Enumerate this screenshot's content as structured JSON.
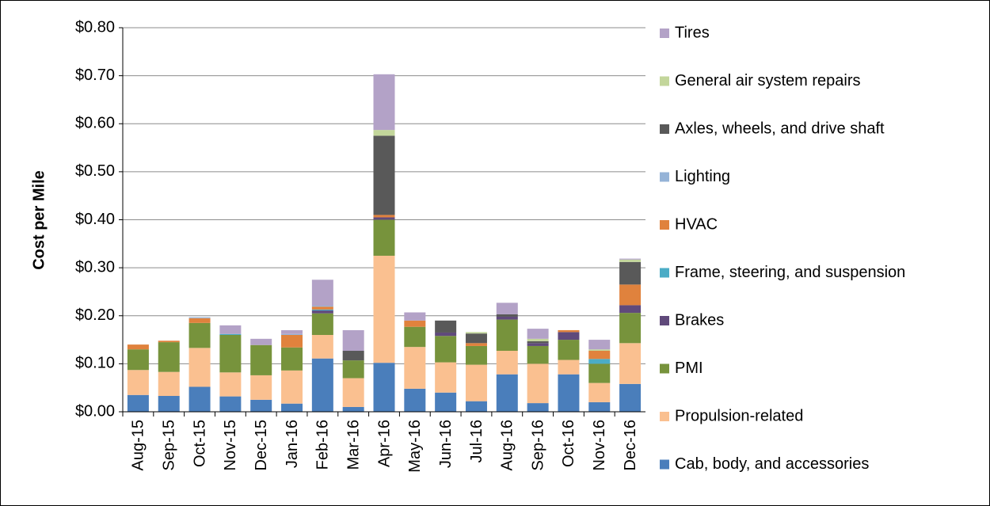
{
  "chart_data": {
    "type": "bar",
    "stacked": true,
    "y_label": "Cost per Mile",
    "categories": [
      "Aug-15",
      "Sep-15",
      "Oct-15",
      "Nov-15",
      "Dec-15",
      "Jan-16",
      "Feb-16",
      "Mar-16",
      "Apr-16",
      "May-16",
      "Jun-16",
      "Jul-16",
      "Aug-16",
      "Sep-16",
      "Oct-16",
      "Nov-16",
      "Dec-16"
    ],
    "series": [
      {
        "name": "Cab, body, and accessories",
        "color": "#4a7ebb",
        "values": [
          0.035,
          0.033,
          0.052,
          0.032,
          0.025,
          0.017,
          0.111,
          0.01,
          0.102,
          0.048,
          0.04,
          0.022,
          0.078,
          0.018,
          0.078,
          0.02,
          0.058
        ]
      },
      {
        "name": "Propulsion-related",
        "color": "#fac090",
        "values": [
          0.052,
          0.05,
          0.081,
          0.05,
          0.051,
          0.069,
          0.049,
          0.06,
          0.223,
          0.087,
          0.063,
          0.076,
          0.049,
          0.082,
          0.03,
          0.04,
          0.085
        ]
      },
      {
        "name": "PMI",
        "color": "#77933c",
        "values": [
          0.043,
          0.062,
          0.052,
          0.078,
          0.063,
          0.048,
          0.045,
          0.037,
          0.075,
          0.042,
          0.055,
          0.039,
          0.065,
          0.037,
          0.042,
          0.04,
          0.063
        ]
      },
      {
        "name": "Brakes",
        "color": "#604a7b",
        "values": [
          0,
          0,
          0,
          0,
          0,
          0,
          0.006,
          0,
          0.005,
          0,
          0.007,
          0,
          0.006,
          0.006,
          0.016,
          0,
          0.016
        ]
      },
      {
        "name": "Frame, steering, and suspension",
        "color": "#4bacc6",
        "values": [
          0,
          0,
          0,
          0.002,
          0,
          0,
          0.002,
          0,
          0,
          0,
          0,
          0,
          0,
          0,
          0,
          0.01,
          0
        ]
      },
      {
        "name": "HVAC",
        "color": "#e0823d",
        "values": [
          0.01,
          0.003,
          0.01,
          0,
          0,
          0.026,
          0.006,
          0,
          0.005,
          0.013,
          0,
          0.006,
          0,
          0,
          0.004,
          0.017,
          0.043
        ]
      },
      {
        "name": "Lighting",
        "color": "#95b3d7",
        "values": [
          0,
          0,
          0.002,
          0,
          0,
          0.002,
          0.002,
          0,
          0,
          0,
          0,
          0,
          0,
          0,
          0,
          0,
          0
        ]
      },
      {
        "name": "Axles, wheels, and drive shaft",
        "color": "#595959",
        "values": [
          0,
          0,
          0,
          0,
          0,
          0,
          0,
          0.02,
          0.165,
          0,
          0.025,
          0.02,
          0.005,
          0.004,
          0,
          0,
          0.047
        ]
      },
      {
        "name": "General air system repairs",
        "color": "#c3d69b",
        "values": [
          0,
          0,
          0,
          0,
          0,
          0,
          0,
          0,
          0.012,
          0,
          0,
          0.003,
          0,
          0.005,
          0,
          0.003,
          0.005
        ]
      },
      {
        "name": "Tires",
        "color": "#b3a2c7",
        "values": [
          0,
          0,
          0,
          0.018,
          0.013,
          0.008,
          0.054,
          0.043,
          0.116,
          0.017,
          0,
          0,
          0.024,
          0.021,
          0,
          0.02,
          0.002
        ]
      }
    ],
    "ylim": [
      0,
      0.8
    ],
    "yticks": [
      {
        "value": 0,
        "label": "$0.00"
      },
      {
        "value": 0.1,
        "label": "$0.10"
      },
      {
        "value": 0.2,
        "label": "$0.20"
      },
      {
        "value": 0.3,
        "label": "$0.30"
      },
      {
        "value": 0.4,
        "label": "$0.40"
      },
      {
        "value": 0.5,
        "label": "$0.50"
      },
      {
        "value": 0.6,
        "label": "$0.60"
      },
      {
        "value": 0.7,
        "label": "$0.70"
      },
      {
        "value": 0.8,
        "label": "$0.80"
      }
    ],
    "grid": true,
    "legend": "right"
  }
}
